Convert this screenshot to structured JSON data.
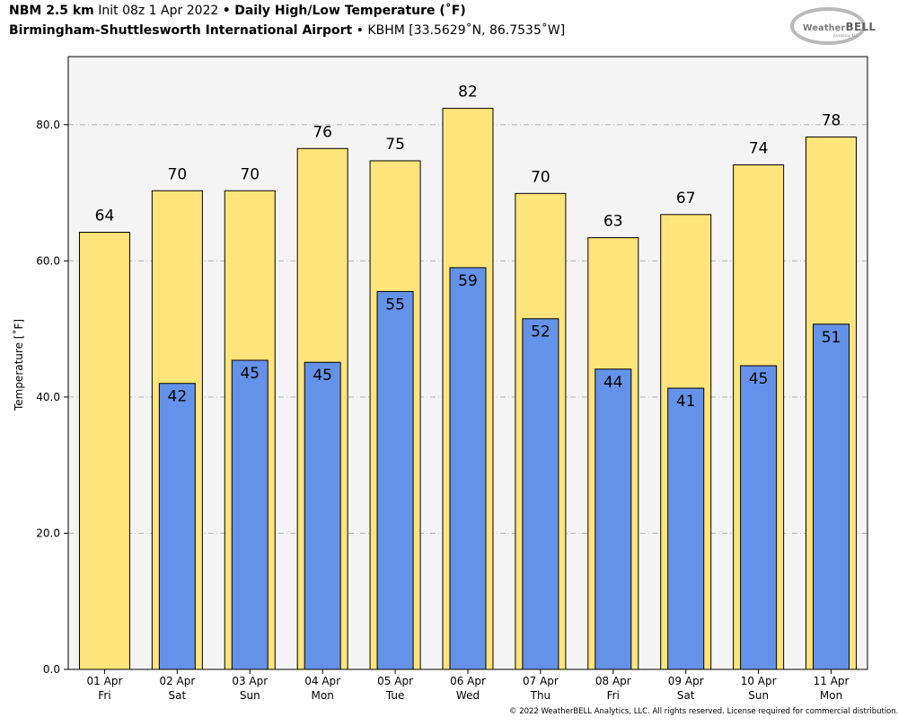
{
  "header": {
    "model": "NBM 2.5 km",
    "init": "Init 08z 1 Apr 2022",
    "bullet": "•",
    "product": "Daily High/Low Temperature (˚F)",
    "station_name": "Birmingham-Shuttlesworth International Airport",
    "station_info": "KBHM [33.5629˚N, 86.7535˚W]"
  },
  "logo": {
    "text_small": "Weather",
    "text_big": "BELL",
    "sub": "Analytics, LLC"
  },
  "footer": {
    "copyright": "© 2022 WeatherBELL Analytics, LLC. All rights reserved. License required for commercial distribution."
  },
  "colors": {
    "high": "#fee47a",
    "low": "#6592e9",
    "plot_bg": "#f4f4f4",
    "grid": "#b4b4b4"
  },
  "chart_data": {
    "type": "bar",
    "title": "Daily High/Low Temperature (˚F)",
    "xlabel": "",
    "ylabel": "Temperature [˚F]",
    "ylim": [
      0,
      90
    ],
    "yticks": [
      0,
      20,
      40,
      60,
      80
    ],
    "ytick_labels": [
      "0.0",
      "20.0",
      "40.0",
      "60.0",
      "80.0"
    ],
    "grid": true,
    "categories": [
      [
        "01 Apr",
        "Fri"
      ],
      [
        "02 Apr",
        "Sat"
      ],
      [
        "03 Apr",
        "Sun"
      ],
      [
        "04 Apr",
        "Mon"
      ],
      [
        "05 Apr",
        "Tue"
      ],
      [
        "06 Apr",
        "Wed"
      ],
      [
        "07 Apr",
        "Thu"
      ],
      [
        "08 Apr",
        "Fri"
      ],
      [
        "09 Apr",
        "Sat"
      ],
      [
        "10 Apr",
        "Sun"
      ],
      [
        "11 Apr",
        "Mon"
      ]
    ],
    "series": [
      {
        "values": [
          64.2,
          70.3,
          70.3,
          76.5,
          74.7,
          82.4,
          69.9,
          63.4,
          66.8,
          74.1,
          78.2
        ],
        "labels": [
          "64",
          "70",
          "70",
          "76",
          "75",
          "82",
          "70",
          "63",
          "67",
          "74",
          "78"
        ]
      },
      {
        "values": [
          null,
          42.0,
          45.4,
          45.1,
          55.5,
          59.0,
          51.5,
          44.1,
          41.3,
          44.6,
          50.7
        ],
        "labels": [
          "",
          "42",
          "45",
          "45",
          "55",
          "59",
          "52",
          "44",
          "41",
          "45",
          "51"
        ]
      }
    ]
  }
}
